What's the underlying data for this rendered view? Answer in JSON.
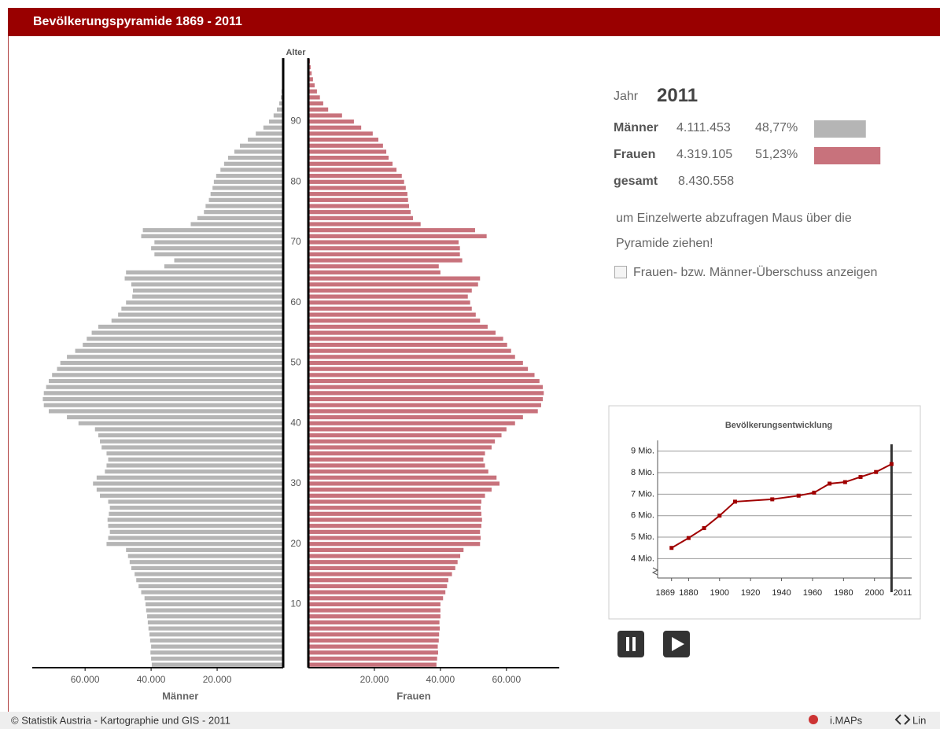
{
  "header": {
    "title": "Bevölkerungspyramide 1869 - 2011"
  },
  "pyramid": {
    "type": "pyramid",
    "y_label": "Alter",
    "ages": [
      0,
      1,
      2,
      3,
      4,
      5,
      6,
      7,
      8,
      9,
      10,
      11,
      12,
      13,
      14,
      15,
      16,
      17,
      18,
      19,
      20,
      21,
      22,
      23,
      24,
      25,
      26,
      27,
      28,
      29,
      30,
      31,
      32,
      33,
      34,
      35,
      36,
      37,
      38,
      39,
      40,
      41,
      42,
      43,
      44,
      45,
      46,
      47,
      48,
      49,
      50,
      51,
      52,
      53,
      54,
      55,
      56,
      57,
      58,
      59,
      60,
      61,
      62,
      63,
      64,
      65,
      66,
      67,
      68,
      69,
      70,
      71,
      72,
      73,
      74,
      75,
      76,
      77,
      78,
      79,
      80,
      81,
      82,
      83,
      84,
      85,
      86,
      87,
      88,
      89,
      90,
      91,
      92,
      93,
      94,
      95,
      96,
      97,
      98,
      99,
      100
    ],
    "ylim": [
      -0.5,
      100.5
    ],
    "yticks": [
      10,
      20,
      30,
      40,
      50,
      60,
      70,
      80,
      90
    ],
    "xlim": [
      0,
      76000
    ],
    "xticks": [
      {
        "value": 20000,
        "label": "20.000"
      },
      {
        "value": 40000,
        "label": "40.000"
      },
      {
        "value": 60000,
        "label": "60.000"
      }
    ],
    "series": [
      {
        "name": "Männer",
        "color": "#b5b5b5",
        "side": "left",
        "values": [
          39800,
          40000,
          40200,
          40000,
          40300,
          40500,
          40800,
          41000,
          41200,
          41500,
          41700,
          42000,
          43000,
          43800,
          44500,
          45000,
          46000,
          46500,
          47000,
          47600,
          53500,
          53000,
          52500,
          53000,
          53200,
          52800,
          52500,
          53000,
          55500,
          56500,
          57600,
          56500,
          54000,
          53500,
          53000,
          53500,
          55000,
          55500,
          56000,
          57000,
          62000,
          65500,
          71000,
          72500,
          72800,
          72500,
          71800,
          71000,
          70000,
          68500,
          67500,
          65500,
          63000,
          60700,
          59500,
          58000,
          56000,
          52000,
          50000,
          49000,
          47600,
          45700,
          45500,
          46000,
          48000,
          47600,
          36000,
          33000,
          39000,
          40000,
          39000,
          43000,
          42500,
          28000,
          26000,
          24000,
          23500,
          22500,
          22000,
          21400,
          21000,
          20300,
          19000,
          17900,
          16700,
          14800,
          13100,
          10700,
          8300,
          6000,
          4300,
          2900,
          1900,
          1200,
          700,
          500,
          300,
          200,
          100,
          100,
          100
        ]
      },
      {
        "name": "Frauen",
        "color": "#c8727c",
        "side": "right",
        "values": [
          38800,
          39000,
          39300,
          39200,
          39500,
          39600,
          39800,
          39700,
          40000,
          40000,
          40000,
          40800,
          41500,
          42000,
          42400,
          43500,
          44500,
          45200,
          46000,
          47000,
          52000,
          52200,
          52000,
          52400,
          52600,
          52400,
          52200,
          52400,
          53500,
          55500,
          57900,
          57000,
          54500,
          53500,
          53000,
          53500,
          55500,
          56500,
          58500,
          60000,
          62600,
          65000,
          69500,
          70500,
          71000,
          71300,
          71000,
          70000,
          68500,
          66500,
          65000,
          62600,
          61400,
          60200,
          59000,
          56700,
          54300,
          52000,
          50700,
          49500,
          49000,
          48300,
          49500,
          51400,
          52000,
          40000,
          39500,
          46600,
          45900,
          45900,
          45500,
          54000,
          50500,
          34000,
          31700,
          31000,
          30500,
          30200,
          30000,
          29500,
          29000,
          28300,
          26700,
          25500,
          24300,
          23600,
          22600,
          21200,
          19500,
          16000,
          13800,
          10200,
          6000,
          4500,
          3500,
          2600,
          1900,
          1400,
          1000,
          700,
          500
        ]
      }
    ]
  },
  "info": {
    "year_label": "Jahr",
    "year": 2011,
    "rows": [
      {
        "label": "Männer",
        "value": "4.111.453",
        "percent": 48.77,
        "percent_label": "48,77%",
        "color": "#b5b5b5"
      },
      {
        "label": "Frauen",
        "value": "4.319.105",
        "percent": 51.23,
        "percent_label": "51,23%",
        "color": "#c8727c"
      }
    ],
    "total": {
      "label": "gesamt",
      "value": "8.430.558"
    },
    "hint": "um Einzelwerte abzufragen Maus über die Pyramide ziehen!",
    "checkbox_label": "Frauen- bzw. Männer-Überschuss anzeigen"
  },
  "trend": {
    "type": "line",
    "title": "Bevölkerungsentwicklung",
    "x": [
      1869,
      1880,
      1890,
      1900,
      1910,
      1934,
      1951,
      1961,
      1971,
      1981,
      1991,
      2001,
      2011
    ],
    "series": [
      {
        "color": "#a00000",
        "values": [
          4500000,
          4960000,
          5420000,
          6000000,
          6650000,
          6760000,
          6930000,
          7070000,
          7490000,
          7560000,
          7800000,
          8030000,
          8400000
        ]
      }
    ],
    "xlim": [
      1860,
      2024
    ],
    "ylim": [
      3100000,
      9500000
    ],
    "xticks": [
      1869,
      1880,
      1900,
      1920,
      1940,
      1960,
      1980,
      2000,
      2011
    ],
    "yticks": [
      {
        "value": 4000000,
        "label": "4 Mio."
      },
      {
        "value": 5000000,
        "label": "5 Mio."
      },
      {
        "value": 6000000,
        "label": "6 Mio."
      },
      {
        "value": 7000000,
        "label": "7 Mio."
      },
      {
        "value": 8000000,
        "label": "8 Mio."
      },
      {
        "value": 9000000,
        "label": "9 Mio."
      }
    ]
  },
  "footer": {
    "copyright": "© Statistik Austria  - Kartographie und GIS - 2011",
    "imaps": "i.MAPs",
    "link": "Lin"
  }
}
